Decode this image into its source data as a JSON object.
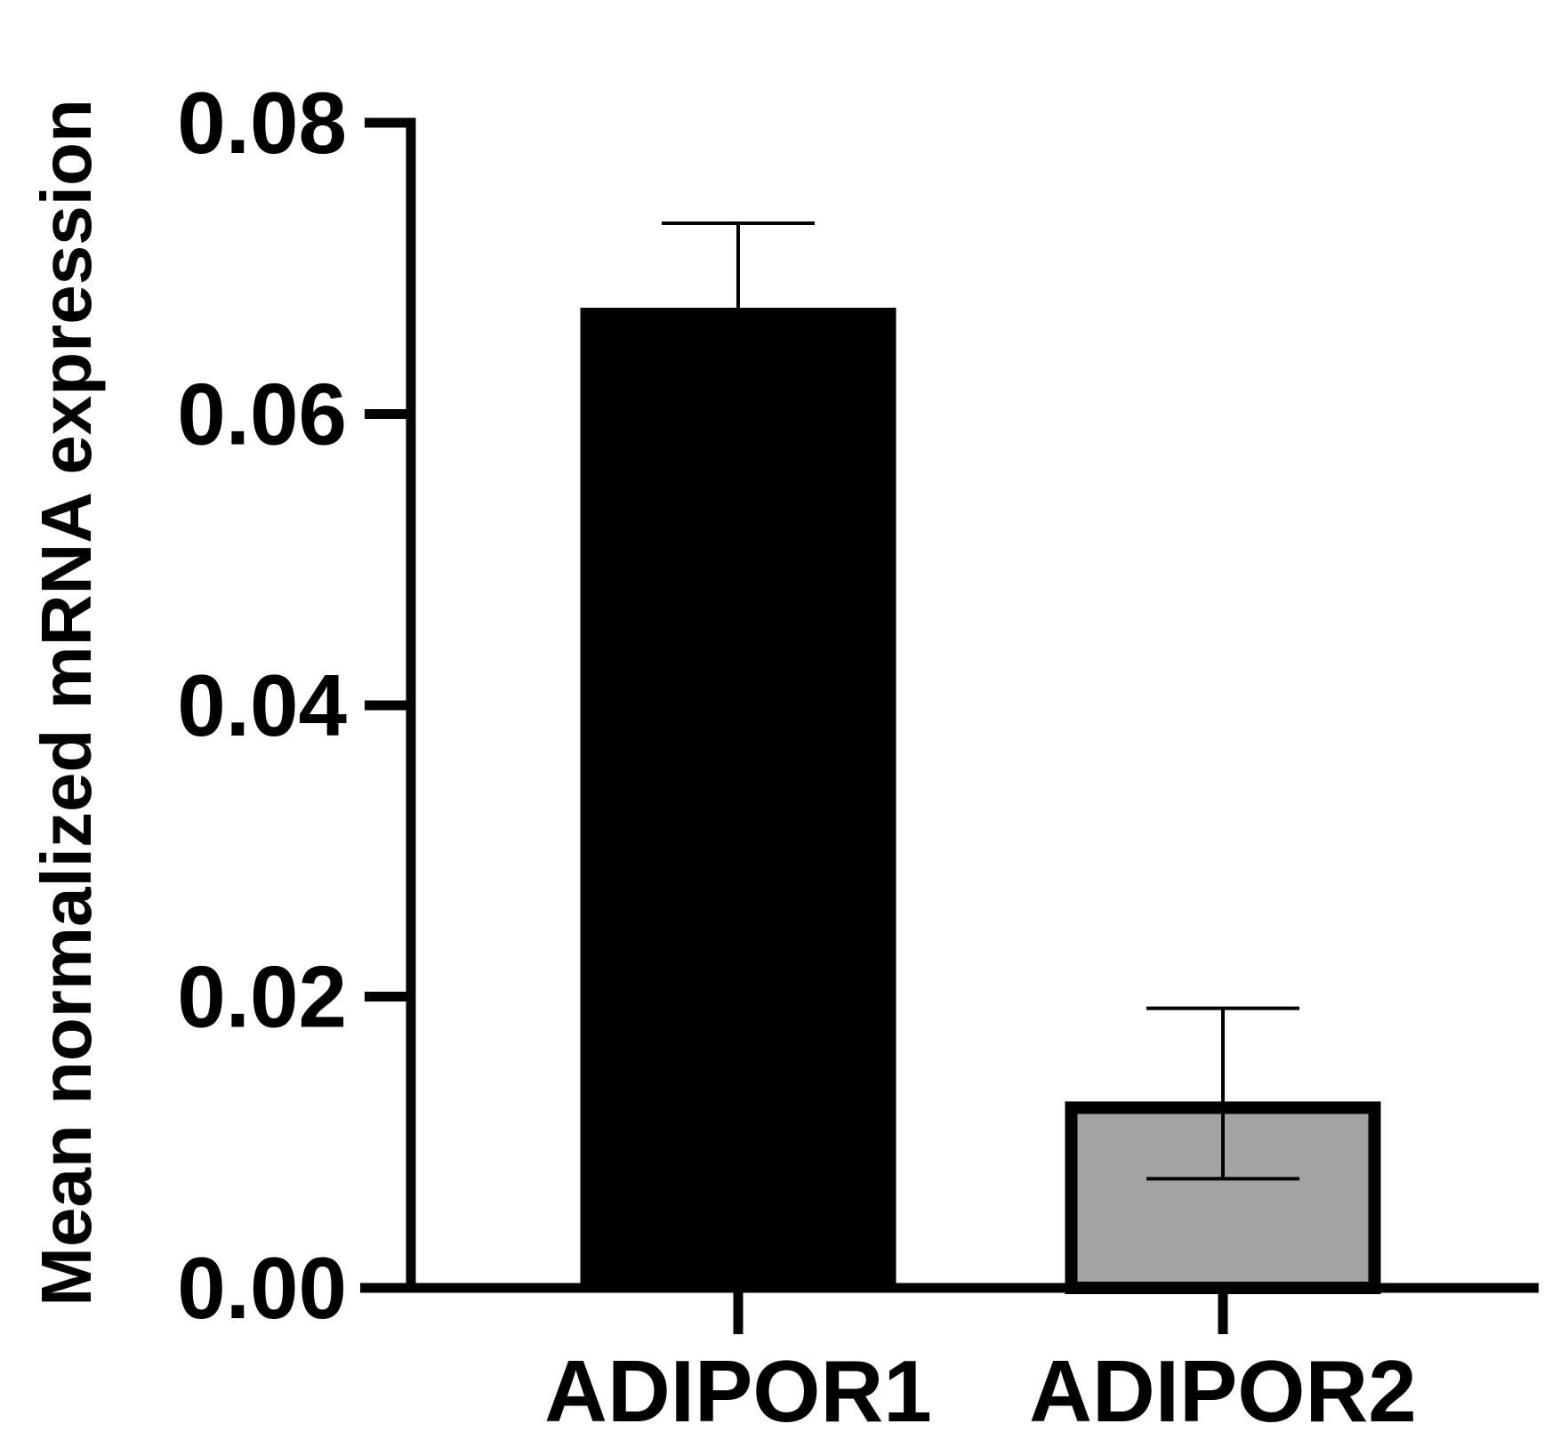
{
  "chart_data": {
    "type": "bar",
    "title": "",
    "xlabel": "",
    "ylabel": "Mean normalized mRNA expression",
    "ylim": [
      0,
      0.08
    ],
    "yticks": [
      0,
      0.02,
      0.04,
      0.06,
      0.08
    ],
    "ytick_labels": [
      "0.00",
      "0.02",
      "0.04",
      "0.06",
      "0.08"
    ],
    "categories": [
      "ADIPOR1",
      "ADIPOR2"
    ],
    "values": [
      0.0673,
      0.0128
    ],
    "error_upper": [
      0.0731,
      0.0192
    ],
    "error_lower": [
      0.0673,
      0.0075
    ],
    "bar_colors": [
      "#000000",
      "#a3a3a6"
    ],
    "bar_edge_color": "#000000",
    "grid": false,
    "legend": "none"
  }
}
